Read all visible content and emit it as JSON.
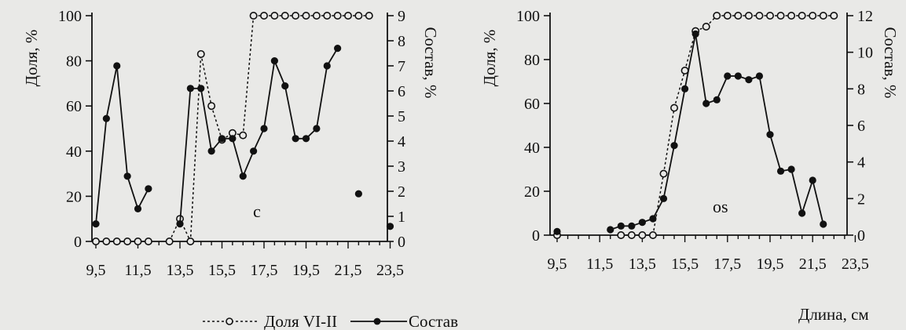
{
  "chart_data": [
    {
      "type": "line",
      "panel_label": "c",
      "x": [
        9.5,
        10.0,
        10.5,
        11.0,
        11.5,
        12.0,
        12.5,
        13.0,
        13.5,
        14.0,
        14.5,
        15.0,
        15.5,
        16.0,
        16.5,
        17.0,
        17.5,
        18.0,
        18.5,
        19.0,
        19.5,
        20.0,
        20.5,
        21.0,
        21.5,
        22.0,
        22.5,
        23.0,
        23.5
      ],
      "x_ticks": [
        "9,5",
        "11,5",
        "13,5",
        "15,5",
        "17,5",
        "19,5",
        "21,5",
        "23,5"
      ],
      "y_left_label": "Доля, %",
      "y_left_ticks": [
        "0",
        "20",
        "40",
        "60",
        "80",
        "100"
      ],
      "y_left_lim": [
        0,
        100
      ],
      "y_right_label": "Состав, %",
      "y_right_ticks": [
        "0",
        "1",
        "2",
        "3",
        "4",
        "5",
        "6",
        "7",
        "8",
        "9"
      ],
      "y_right_lim": [
        0,
        9
      ],
      "series": [
        {
          "name": "Доля VI-II",
          "axis": "left",
          "style": "dotted-open-circle",
          "values": [
            0,
            0,
            0,
            0,
            0,
            0,
            null,
            0,
            10,
            0,
            83,
            60,
            45,
            48,
            47,
            100,
            100,
            100,
            100,
            100,
            100,
            100,
            100,
            100,
            100,
            100,
            100,
            null,
            null
          ]
        },
        {
          "name": "Состав",
          "axis": "right",
          "style": "solid-filled-circle",
          "values": [
            0.7,
            4.9,
            7.0,
            2.6,
            1.3,
            2.1,
            null,
            null,
            0.7,
            6.1,
            6.1,
            3.6,
            4.1,
            4.1,
            2.6,
            3.6,
            4.5,
            7.2,
            6.2,
            4.1,
            4.1,
            4.5,
            7.0,
            7.7,
            null,
            1.9,
            null,
            null,
            0.6
          ]
        }
      ]
    },
    {
      "type": "line",
      "panel_label": "os",
      "x": [
        9.5,
        10.0,
        10.5,
        11.0,
        11.5,
        12.0,
        12.5,
        13.0,
        13.5,
        14.0,
        14.5,
        15.0,
        15.5,
        16.0,
        16.5,
        17.0,
        17.5,
        18.0,
        18.5,
        19.0,
        19.5,
        20.0,
        20.5,
        21.0,
        21.5,
        22.0,
        22.5,
        23.0,
        23.5
      ],
      "x_ticks": [
        "9,5",
        "11,5",
        "13,5",
        "15,5",
        "17,5",
        "19,5",
        "21,5",
        "23,5"
      ],
      "y_left_label": "Доля, %",
      "y_left_ticks": [
        "0",
        "20",
        "40",
        "60",
        "80",
        "100"
      ],
      "y_left_lim": [
        0,
        100
      ],
      "y_right_label": "Состав, %",
      "y_right_ticks": [
        "0",
        "2",
        "4",
        "6",
        "8",
        "10",
        "12"
      ],
      "y_right_lim": [
        0,
        12
      ],
      "series": [
        {
          "name": "Доля VI-II",
          "axis": "left",
          "style": "dotted-open-circle",
          "values": [
            0,
            null,
            null,
            null,
            null,
            null,
            0,
            0,
            0,
            0,
            28,
            58,
            75,
            93,
            95,
            100,
            100,
            100,
            100,
            100,
            100,
            100,
            100,
            100,
            100,
            100,
            100,
            null,
            null
          ]
        },
        {
          "name": "Состав",
          "axis": "right",
          "style": "solid-filled-circle",
          "values": [
            0.2,
            null,
            null,
            null,
            null,
            0.3,
            0.5,
            0.5,
            0.7,
            0.9,
            2.0,
            4.9,
            8.0,
            11.0,
            7.2,
            7.4,
            8.7,
            8.7,
            8.5,
            8.7,
            5.5,
            3.5,
            3.6,
            1.2,
            3.0,
            0.6,
            null,
            null,
            null
          ]
        }
      ]
    }
  ],
  "legend": {
    "items": [
      {
        "label": "Доля VI-II",
        "style": "dotted-open-circle"
      },
      {
        "label": "Состав",
        "style": "solid-filled-circle"
      }
    ]
  },
  "x_axis_label": "Длина, см",
  "colors": {
    "ink": "#111111",
    "background": "#e9e9e7"
  }
}
